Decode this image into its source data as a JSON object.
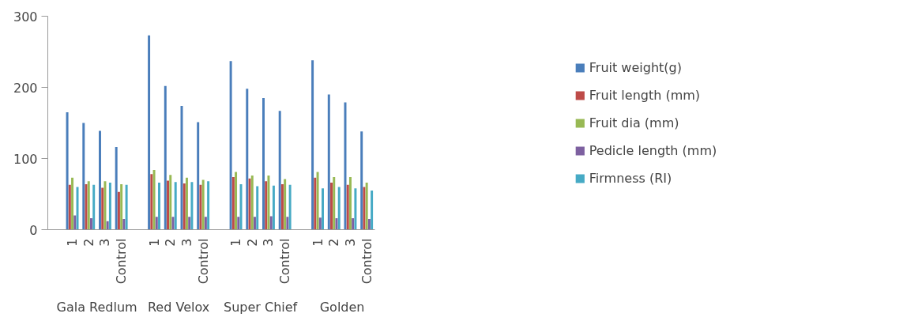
{
  "chart_data": {
    "type": "bar",
    "categories": [
      null,
      "1",
      "2",
      "3",
      "Control",
      null,
      "1",
      "2",
      "3",
      "Control",
      null,
      "1",
      "2",
      "3",
      "Control",
      null,
      "1",
      "2",
      "3",
      "Control"
    ],
    "annotations": [
      "Gala Redlum",
      "Red Velox",
      "Super Chief",
      "Golden"
    ],
    "ylim": [
      0,
      300
    ],
    "yticks": [
      0,
      100,
      200,
      300
    ],
    "grid": false,
    "legend": "right",
    "series": [
      {
        "name": "Fruit weight(g)",
        "color": "#4a7ebb",
        "values": [
          null,
          165,
          150,
          139,
          116,
          null,
          273,
          202,
          174,
          151,
          null,
          237,
          198,
          185,
          167,
          null,
          238,
          190,
          179,
          138
        ]
      },
      {
        "name": "Fruit length (mm)",
        "color": "#be4b48",
        "values": [
          null,
          63,
          64,
          59,
          53,
          null,
          78,
          69,
          65,
          63,
          null,
          74,
          72,
          68,
          64,
          null,
          73,
          66,
          63,
          60
        ]
      },
      {
        "name": "Fruit dia (mm)",
        "color": "#98b954",
        "values": [
          null,
          73,
          68,
          68,
          64,
          null,
          84,
          77,
          73,
          70,
          null,
          81,
          76,
          76,
          71,
          null,
          81,
          74,
          74,
          66
        ]
      },
      {
        "name": "Pedicle length (mm)",
        "color": "#7d60a0",
        "values": [
          null,
          20,
          16,
          12,
          15,
          null,
          18,
          18,
          18,
          18,
          null,
          18,
          18,
          19,
          18,
          null,
          17,
          16,
          16,
          15
        ]
      },
      {
        "name": "Firmness (RI)",
        "color": "#46aac5",
        "values": [
          null,
          60,
          63,
          66,
          63,
          null,
          66,
          67,
          67,
          68,
          null,
          64,
          61,
          62,
          63,
          null,
          58,
          60,
          58,
          55
        ]
      }
    ]
  }
}
